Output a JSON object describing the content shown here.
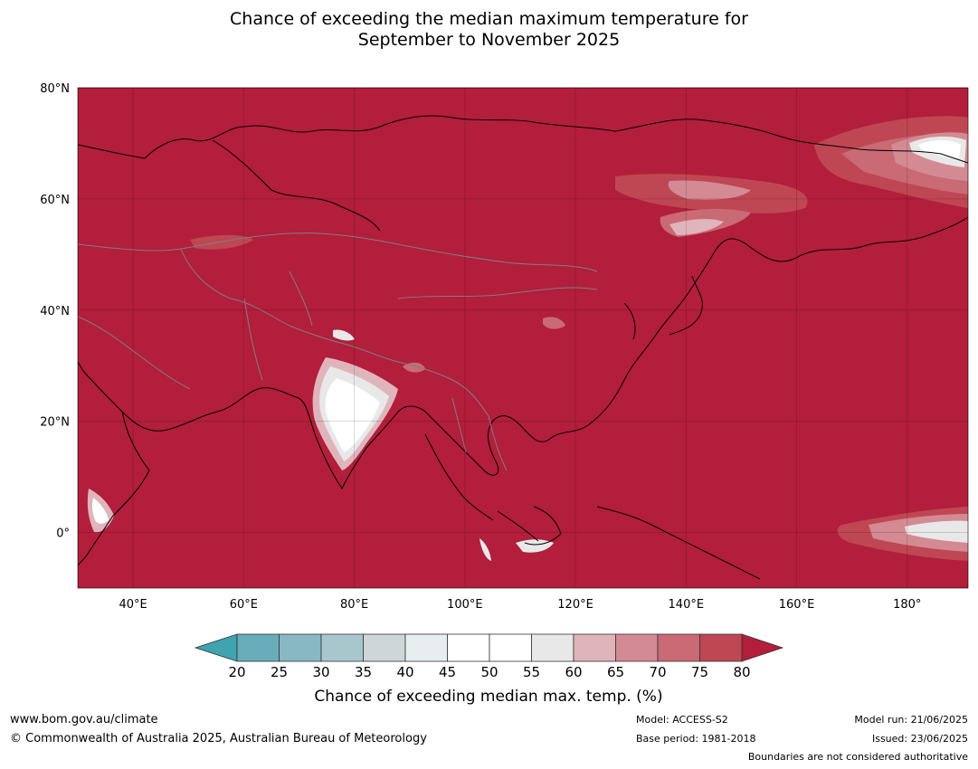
{
  "title_line1": "Chance of exceeding the median maximum temperature for",
  "title_line2": "September to November 2025",
  "axes": {
    "lon_ticks": [
      "40°E",
      "60°E",
      "80°E",
      "100°E",
      "120°E",
      "140°E",
      "160°E",
      "180°"
    ],
    "lat_ticks": [
      "80°N",
      "60°N",
      "40°N",
      "20°N",
      "0°"
    ],
    "lon_range": [
      30,
      191
    ],
    "lat_range": [
      -10,
      80
    ]
  },
  "colorbar": {
    "label": "Chance of exceeding median max. temp. (%)",
    "ticks": [
      "20",
      "25",
      "30",
      "35",
      "40",
      "45",
      "50",
      "55",
      "60",
      "65",
      "70",
      "75",
      "80"
    ],
    "under_color": "#3fa3b0",
    "over_color": "#b21e3b",
    "colors": [
      "#69adbb",
      "#88b8c4",
      "#a8c7cd",
      "#ced6d9",
      "#e8eef0",
      "#ffffff",
      "#ffffff",
      "#e8e8e8",
      "#dfb5bb",
      "#d48a93",
      "#c96a74",
      "#be4753"
    ]
  },
  "footer": {
    "website": "www.bom.gov.au/climate",
    "copyright": "© Commonwealth of Australia 2025, Australian Bureau of Meteorology",
    "model": "Model: ACCESS-S2",
    "base_period": "Base period: 1981-2018",
    "model_run": "Model run: 21/06/2025",
    "issued": "Issued: 23/06/2025",
    "disclaimer": "Boundaries are not considered authoritative"
  }
}
